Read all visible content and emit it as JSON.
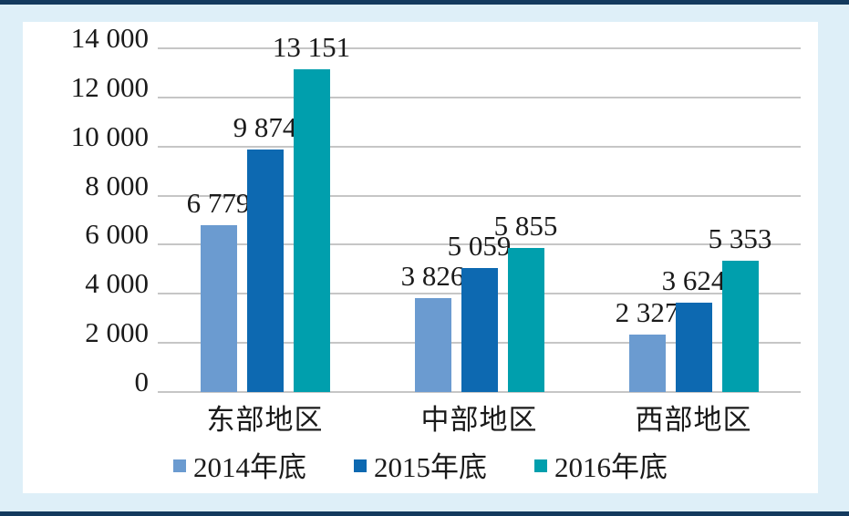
{
  "figure": {
    "background_color": "#deeff8",
    "frame_rule_color": "#133a5e",
    "panel_color": "#ffffff"
  },
  "chart_data": {
    "type": "bar",
    "title": "",
    "xlabel": "",
    "ylabel": "",
    "categories": [
      "东部地区",
      "中部地区",
      "西部地区"
    ],
    "series": [
      {
        "name": "2014年底",
        "color": "#6b9bd0",
        "values": [
          6779,
          3826,
          2327
        ],
        "labels": [
          "6 779",
          "3 826",
          "2 327"
        ]
      },
      {
        "name": "2015年底",
        "color": "#0d69b1",
        "values": [
          9874,
          5059,
          3624
        ],
        "labels": [
          "9 874",
          "5 059",
          "3 624"
        ]
      },
      {
        "name": "2016年底",
        "color": "#009fad",
        "values": [
          13151,
          5855,
          5353
        ],
        "labels": [
          "13 151",
          "5 855",
          "5 353"
        ]
      }
    ],
    "y_axis": {
      "min": 0,
      "max": 14000,
      "step": 2000,
      "tick_labels": [
        "0",
        "2 000",
        "4 000",
        "6 000",
        "8 000",
        "10 000",
        "12 000",
        "14 000"
      ]
    },
    "grid": true,
    "gridline_color": "#c6c6c6",
    "legend_position": "bottom"
  }
}
